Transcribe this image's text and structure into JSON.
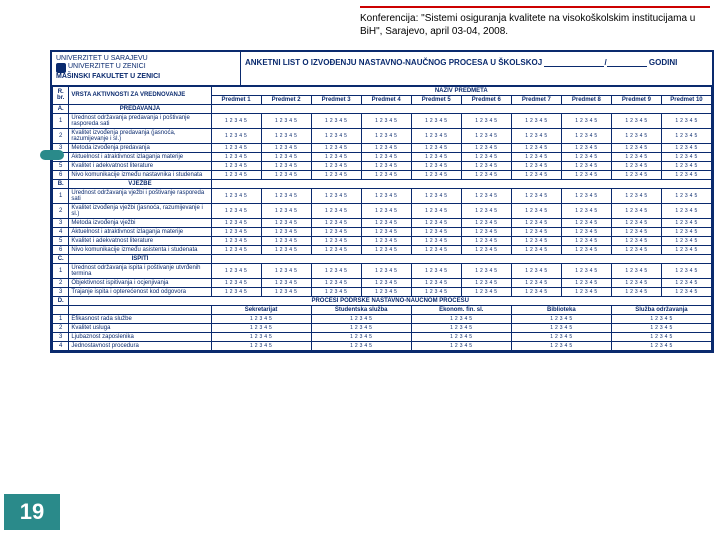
{
  "conference": {
    "line": "Konferencija: \"Sistemi osiguranja kvalitete na visokoškolskim institucijama u BiH\", Sarajevo, april 03-04, 2008."
  },
  "header": {
    "univ1": "UNIVERZITET U SARAJEVU",
    "univ2": "UNIVERZITET U ZENICI",
    "fac": "MAŠINSKI FAKULTET U ZENICI",
    "title_a": "ANKETNI LIST O IZVOĐENJU NASTAVNO-NAUČNOG PROCESA U ŠKOLSKOJ",
    "title_b": "GODINI"
  },
  "columns": {
    "rb": "R. br.",
    "act": "VRSTA AKTIVNOSTI ZA VREDNOVANJE",
    "naziv": "NAZIV PREDMETA",
    "subjects": [
      "Predmet 1",
      "Predmet 2",
      "Predmet 3",
      "Predmet 4",
      "Predmet 5",
      "Predmet 6",
      "Predmet 7",
      "Predmet 8",
      "Predmet 9",
      "Predmet 10"
    ]
  },
  "rating_scale": "1 2 3 4 5",
  "sections": {
    "A": {
      "letter": "A.",
      "title": "PREDAVANJA",
      "rows": [
        {
          "n": "1",
          "t": "Urednost održavanja predavanja i poštivanje rasporeda sati"
        },
        {
          "n": "2",
          "t": "Kvalitet izvođenja predavanja (jasnoća, razumijevanje i sl.)"
        },
        {
          "n": "3",
          "t": "Metoda izvođenja predavanja"
        },
        {
          "n": "4",
          "t": "Aktuelnost i atraktivnost izlaganja materije"
        },
        {
          "n": "5",
          "t": "Kvalitet i adekvatnost literature"
        },
        {
          "n": "6",
          "t": "Nivo komunikacije između nastavnika i studenata"
        }
      ]
    },
    "B": {
      "letter": "B.",
      "title": "VJEŽBE",
      "rows": [
        {
          "n": "1",
          "t": "Urednost održavanja vježbi i poštivanje rasporeda sati"
        },
        {
          "n": "2",
          "t": "Kvalitet izvođenja vježbi (jasnoća, razumijevanje i sl.)"
        },
        {
          "n": "3",
          "t": "Metoda izvođenja vježbi"
        },
        {
          "n": "4",
          "t": "Aktuelnost i atraktivnost izlaganja materije"
        },
        {
          "n": "5",
          "t": "Kvalitet i adekvatnost literature"
        },
        {
          "n": "6",
          "t": "Nivo komunikacije između asistenta i studenata"
        }
      ]
    },
    "C": {
      "letter": "C.",
      "title": "ISPITI",
      "rows": [
        {
          "n": "1",
          "t": "Urednost održavanja ispita i poštivanje utvrđenih termina"
        },
        {
          "n": "2",
          "t": "Objektivnost ispitivanja i ocjenjivanja"
        },
        {
          "n": "3",
          "t": "Trajanje ispita i opterećenost kod odgovora"
        }
      ]
    },
    "D": {
      "letter": "D.",
      "title": "PROCESI PODRŠKE NASTAVNO-NAUČNOM PROCESU",
      "subcols": [
        "Sekretarijat",
        "Studentska služba",
        "Ekonom. fin. sl.",
        "Biblioteka",
        "Služba održavanja"
      ],
      "rows": [
        {
          "n": "1",
          "t": "Efikasnost rada službe"
        },
        {
          "n": "2",
          "t": "Kvalitet usluga"
        },
        {
          "n": "3",
          "t": "Ljubaznost zaposlenika"
        },
        {
          "n": "4",
          "t": "Jednostavnost procedura"
        }
      ]
    }
  },
  "page_number": "19",
  "colors": {
    "border": "#0a2a6e",
    "accent": "#2a8a8a",
    "rule": "#c00000"
  }
}
